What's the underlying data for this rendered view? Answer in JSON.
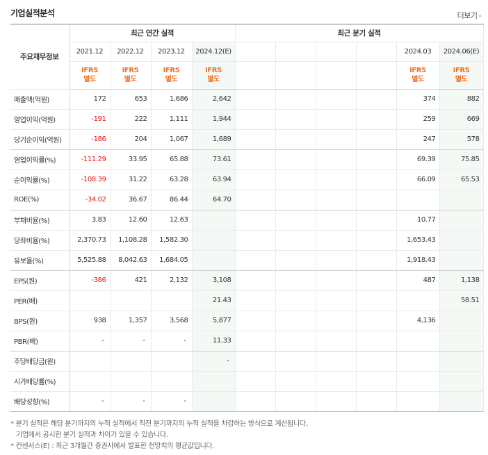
{
  "section_title": "기업실적분석",
  "more_label": "더보기",
  "more_icon": "chevron-right-icon",
  "corner_label": "주요재무정보",
  "annual_group_label": "최근 연간 실적",
  "quarter_group_label": "최근 분기 실적",
  "annual_periods": [
    "2021.12",
    "2022.12",
    "2023.12",
    "2024.12(E)"
  ],
  "quarter_periods": [
    "",
    "",
    "",
    "",
    "2024.03",
    "2024.06(E)"
  ],
  "ifrs": {
    "line1": "IFRS",
    "line2": "별도"
  },
  "rows": [
    {
      "label": "매출액(억원)",
      "annual": [
        "172",
        "653",
        "1,686",
        "2,642"
      ],
      "quarter": [
        "",
        "",
        "",
        "",
        "374",
        "882"
      ],
      "neg": []
    },
    {
      "label": "영업이익(억원)",
      "annual": [
        "-191",
        "222",
        "1,111",
        "1,944"
      ],
      "quarter": [
        "",
        "",
        "",
        "",
        "259",
        "669"
      ],
      "neg": [
        0
      ]
    },
    {
      "label": "당기순이익(억원)",
      "annual": [
        "-186",
        "204",
        "1,067",
        "1,689"
      ],
      "quarter": [
        "",
        "",
        "",
        "",
        "247",
        "578"
      ],
      "neg": [
        0
      ]
    },
    {
      "label": "영업이익률(%)",
      "annual": [
        "-111.29",
        "33.95",
        "65.88",
        "73.61"
      ],
      "quarter": [
        "",
        "",
        "",
        "",
        "69.39",
        "75.85"
      ],
      "neg": [
        0
      ]
    },
    {
      "label": "순이익률(%)",
      "annual": [
        "-108.39",
        "31.22",
        "63.28",
        "63.94"
      ],
      "quarter": [
        "",
        "",
        "",
        "",
        "66.09",
        "65.53"
      ],
      "neg": [
        0
      ]
    },
    {
      "label": "ROE(%)",
      "annual": [
        "-34.02",
        "36.67",
        "86.44",
        "64.70"
      ],
      "quarter": [
        "",
        "",
        "",
        "",
        "",
        ""
      ],
      "neg": [
        0
      ]
    },
    {
      "label": "부채비율(%)",
      "annual": [
        "3.83",
        "12.60",
        "12.63",
        ""
      ],
      "quarter": [
        "",
        "",
        "",
        "",
        "10.77",
        ""
      ],
      "neg": []
    },
    {
      "label": "당좌비율(%)",
      "annual": [
        "2,370.73",
        "1,108.28",
        "1,582.30",
        ""
      ],
      "quarter": [
        "",
        "",
        "",
        "",
        "1,653.43",
        ""
      ],
      "neg": []
    },
    {
      "label": "유보율(%)",
      "annual": [
        "5,525.88",
        "8,042.63",
        "1,684.05",
        ""
      ],
      "quarter": [
        "",
        "",
        "",
        "",
        "1,918.43",
        ""
      ],
      "neg": []
    },
    {
      "label": "EPS(원)",
      "annual": [
        "-386",
        "421",
        "2,132",
        "3,108"
      ],
      "quarter": [
        "",
        "",
        "",
        "",
        "487",
        "1,138"
      ],
      "neg": [
        0
      ]
    },
    {
      "label": "PER(배)",
      "annual": [
        "",
        "",
        "",
        "21.43"
      ],
      "quarter": [
        "",
        "",
        "",
        "",
        "",
        "58.51"
      ],
      "neg": []
    },
    {
      "label": "BPS(원)",
      "annual": [
        "938",
        "1,357",
        "3,568",
        "5,877"
      ],
      "quarter": [
        "",
        "",
        "",
        "",
        "4,136",
        ""
      ],
      "neg": []
    },
    {
      "label": "PBR(배)",
      "annual": [
        "-",
        "-",
        "-",
        "11.33"
      ],
      "quarter": [
        "",
        "",
        "",
        "",
        "",
        ""
      ],
      "neg": []
    },
    {
      "label": "주당배당금(원)",
      "annual": [
        "",
        "",
        "",
        "-"
      ],
      "quarter": [
        "",
        "",
        "",
        "",
        "",
        ""
      ],
      "neg": []
    },
    {
      "label": "시가배당률(%)",
      "annual": [
        "",
        "",
        "",
        ""
      ],
      "quarter": [
        "",
        "",
        "",
        "",
        "",
        ""
      ],
      "neg": []
    },
    {
      "label": "배당성향(%)",
      "annual": [
        "-",
        "-",
        "-",
        ""
      ],
      "quarter": [
        "",
        "",
        "",
        "",
        "",
        ""
      ],
      "neg": []
    }
  ],
  "group_break_after": [
    2,
    5,
    8,
    12
  ],
  "notes": {
    "line1": "* 분기 실적은 해당 분기까지의 누적 실적에서 직전 분기까지의 누적 실적을 차감하는 방식으로 계산됩니다,",
    "line2": "기업에서 공시한 분기 실적과 차이가 있을 수 있습니다.",
    "line3_prefix": "* 컨센서스",
    "line3_mark": "(E)",
    "line3_suffix": " : 최근 3개월간 증권사에서 발표한 전망치의 평균값입니다."
  }
}
